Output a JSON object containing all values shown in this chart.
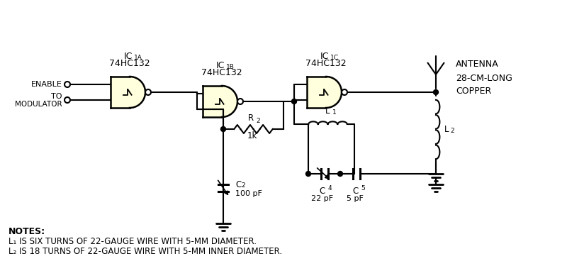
{
  "background_color": "#ffffff",
  "gate_fill": "#ffffdd",
  "notes_bold": "NOTES:",
  "note1": "L₁ IS SIX TURNS OF 22-GAUGE WIRE WITH 5-MM DIAMETER.",
  "note2": "L₂ IS 18 TURNS OF 22-GAUGE WIRE WITH 5-MM INNER DIAMETER.",
  "antenna_text": "ANTENNA\n28-CM-LONG\nCOPPER"
}
